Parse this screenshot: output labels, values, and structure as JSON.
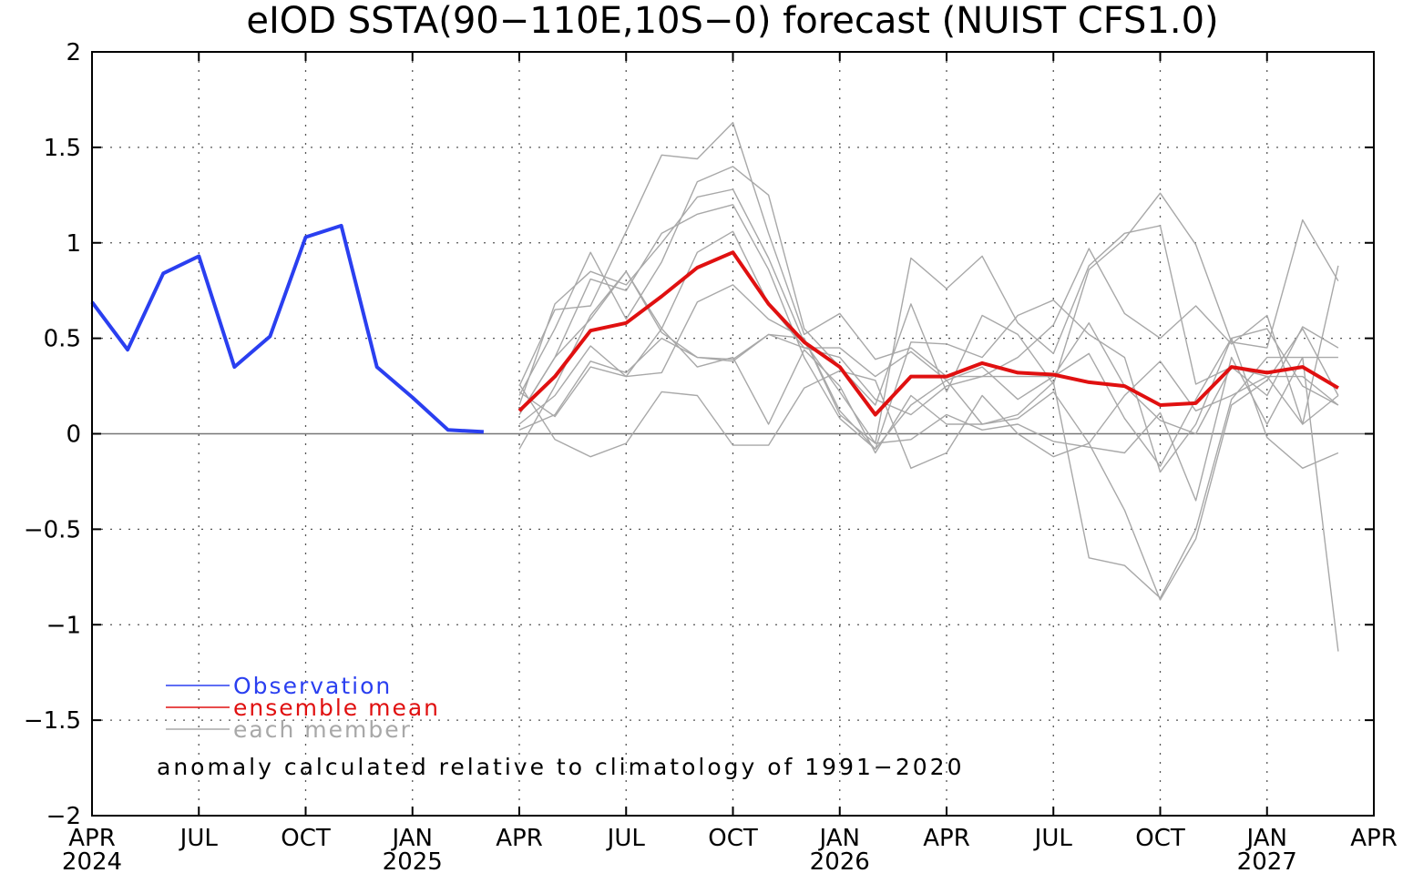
{
  "chart_data": {
    "type": "line",
    "title": "eIOD SSTA(90−110E,10S−0) forecast (NUIST CFS1.0)",
    "ylim": [
      -2,
      2
    ],
    "y_ticks": [
      2,
      1.5,
      1,
      0.5,
      0,
      -0.5,
      -1,
      -1.5,
      -2
    ],
    "y_tick_labels": [
      "2",
      "1.5",
      "1",
      "0.5",
      "0",
      "−0.5",
      "−1",
      "−1.5",
      "−2"
    ],
    "x_range": [
      "2024-04",
      "2027-04"
    ],
    "x_ticks": [
      {
        "x": "2024-04",
        "label": "APR",
        "year": "2024"
      },
      {
        "x": "2024-07",
        "label": "JUL",
        "year": ""
      },
      {
        "x": "2024-10",
        "label": "OCT",
        "year": ""
      },
      {
        "x": "2025-01",
        "label": "JAN",
        "year": "2025"
      },
      {
        "x": "2025-04",
        "label": "APR",
        "year": ""
      },
      {
        "x": "2025-07",
        "label": "JUL",
        "year": ""
      },
      {
        "x": "2025-10",
        "label": "OCT",
        "year": ""
      },
      {
        "x": "2026-01",
        "label": "JAN",
        "year": "2026"
      },
      {
        "x": "2026-04",
        "label": "APR",
        "year": ""
      },
      {
        "x": "2026-07",
        "label": "JUL",
        "year": ""
      },
      {
        "x": "2026-10",
        "label": "OCT",
        "year": ""
      },
      {
        "x": "2027-01",
        "label": "JAN",
        "year": "2027"
      },
      {
        "x": "2027-04",
        "label": "APR",
        "year": ""
      }
    ],
    "grid": true,
    "legend_position": "bottom-left",
    "annotation": "anomaly calculated relative to climatology of 1991−2020",
    "colors": {
      "observation": "#2a3ff0",
      "mean": "#e01010",
      "member": "#a8a8a8",
      "zero_line": "#777777"
    },
    "series": [
      {
        "name": "Observation",
        "role": "observation",
        "x": [
          "2024-04",
          "2024-05",
          "2024-06",
          "2024-07",
          "2024-08",
          "2024-09",
          "2024-10",
          "2024-11",
          "2024-12",
          "2025-01",
          "2025-02",
          "2025-03"
        ],
        "values": [
          0.69,
          0.44,
          0.84,
          0.93,
          0.35,
          0.51,
          1.03,
          1.09,
          0.35,
          0.19,
          0.02,
          0.01
        ]
      },
      {
        "name": "ensemble mean",
        "role": "mean",
        "x": [
          "2025-04",
          "2025-05",
          "2025-06",
          "2025-07",
          "2025-08",
          "2025-09",
          "2025-10",
          "2025-11",
          "2025-12",
          "2026-01",
          "2026-02",
          "2026-03",
          "2026-04",
          "2026-05",
          "2026-06",
          "2026-07",
          "2026-08",
          "2026-09",
          "2026-10",
          "2026-11",
          "2026-12",
          "2027-01",
          "2027-02",
          "2027-03"
        ],
        "values": [
          0.12,
          0.3,
          0.54,
          0.58,
          0.72,
          0.87,
          0.95,
          0.68,
          0.48,
          0.35,
          0.1,
          0.3,
          0.3,
          0.37,
          0.32,
          0.31,
          0.27,
          0.25,
          0.15,
          0.16,
          0.35,
          0.32,
          0.35,
          0.24
        ]
      },
      {
        "name": "each member",
        "role": "member",
        "x": [
          "2025-04",
          "2025-05",
          "2025-06",
          "2025-07",
          "2025-08",
          "2025-09",
          "2025-10",
          "2025-11",
          "2025-12",
          "2026-01",
          "2026-02",
          "2026-03",
          "2026-04",
          "2026-05",
          "2026-06",
          "2026-07",
          "2026-08",
          "2026-09",
          "2026-10",
          "2026-11",
          "2026-12",
          "2027-01",
          "2027-02",
          "2027-03"
        ],
        "members": [
          [
            0.25,
            0.65,
            0.67,
            1.06,
            1.46,
            1.44,
            1.63,
            1.05,
            0.52,
            0.63,
            0.39,
            0.45,
            0.3,
            0.3,
            0.4,
            0.57,
            0.97,
            0.63,
            0.5,
            0.67,
            0.47,
            0.62,
            0.05,
            0.88
          ],
          [
            0.2,
            0.55,
            0.95,
            0.6,
            0.9,
            1.32,
            1.4,
            1.25,
            0.55,
            0.35,
            0.15,
            0.68,
            0.22,
            0.62,
            0.52,
            0.26,
            0.86,
            1.02,
            1.26,
            0.99,
            0.48,
            0.45,
            1.12,
            0.8
          ],
          [
            0.15,
            0.68,
            0.85,
            0.78,
            1.0,
            1.24,
            1.28,
            0.92,
            0.48,
            0.22,
            -0.05,
            0.92,
            0.76,
            0.93,
            0.58,
            0.42,
            0.88,
            1.05,
            1.09,
            0.26,
            0.35,
            0.2,
            0.56,
            0.45
          ],
          [
            0.1,
            0.4,
            0.81,
            0.75,
            1.05,
            1.15,
            1.2,
            0.86,
            0.4,
            0.08,
            -0.08,
            0.48,
            0.47,
            0.4,
            0.62,
            0.7,
            0.52,
            0.4,
            -0.2,
            0.05,
            0.5,
            0.55,
            0.25,
            0.15
          ],
          [
            0.05,
            0.2,
            0.46,
            0.3,
            0.55,
            0.95,
            1.06,
            0.68,
            0.45,
            0.45,
            0.3,
            0.43,
            0.28,
            0.05,
            0.08,
            0.22,
            -0.05,
            -0.4,
            -0.87,
            -0.55,
            0.15,
            0.28,
            0.55,
            0.2
          ],
          [
            0.02,
            0.1,
            0.38,
            0.32,
            0.5,
            0.4,
            0.39,
            0.52,
            0.45,
            0.4,
            0.18,
            0.1,
            0.25,
            0.3,
            0.3,
            0.3,
            0.42,
            0.08,
            -0.17,
            0.18,
            0.5,
            -0.02,
            -0.18,
            -0.1
          ],
          [
            -0.08,
            0.25,
            0.62,
            0.85,
            0.55,
            0.35,
            0.4,
            0.05,
            0.44,
            0.25,
            -0.1,
            0.2,
            0.05,
            0.05,
            0.1,
            0.27,
            -0.65,
            -0.69,
            -0.86,
            -0.5,
            0.18,
            0.4,
            0.4,
            -1.14
          ],
          [
            0.22,
            0.09,
            0.35,
            0.3,
            0.32,
            0.69,
            0.78,
            0.6,
            0.5,
            0.1,
            -0.05,
            -0.03,
            0.1,
            0.02,
            0.05,
            -0.04,
            -0.07,
            -0.1,
            0.11,
            -0.35,
            0.4,
            0.05,
            0.4,
            0.4
          ],
          [
            0.26,
            -0.03,
            -0.12,
            -0.05,
            0.22,
            0.2,
            -0.06,
            -0.06,
            0.24,
            0.33,
            0.28,
            -0.18,
            -0.1,
            0.2,
            0.0,
            -0.12,
            -0.05,
            0.2,
            0.38,
            0.12,
            0.2,
            0.3,
            0.05,
            0.2
          ],
          [
            0.1,
            0.4,
            0.6,
            0.85,
            0.53,
            0.4,
            0.38,
            0.52,
            0.5,
            0.12,
            -0.08,
            0.15,
            0.28,
            0.35,
            0.18,
            0.3,
            0.58,
            0.25,
            0.07,
            0.0,
            0.35,
            0.3,
            0.3,
            0.15
          ]
        ]
      }
    ]
  }
}
